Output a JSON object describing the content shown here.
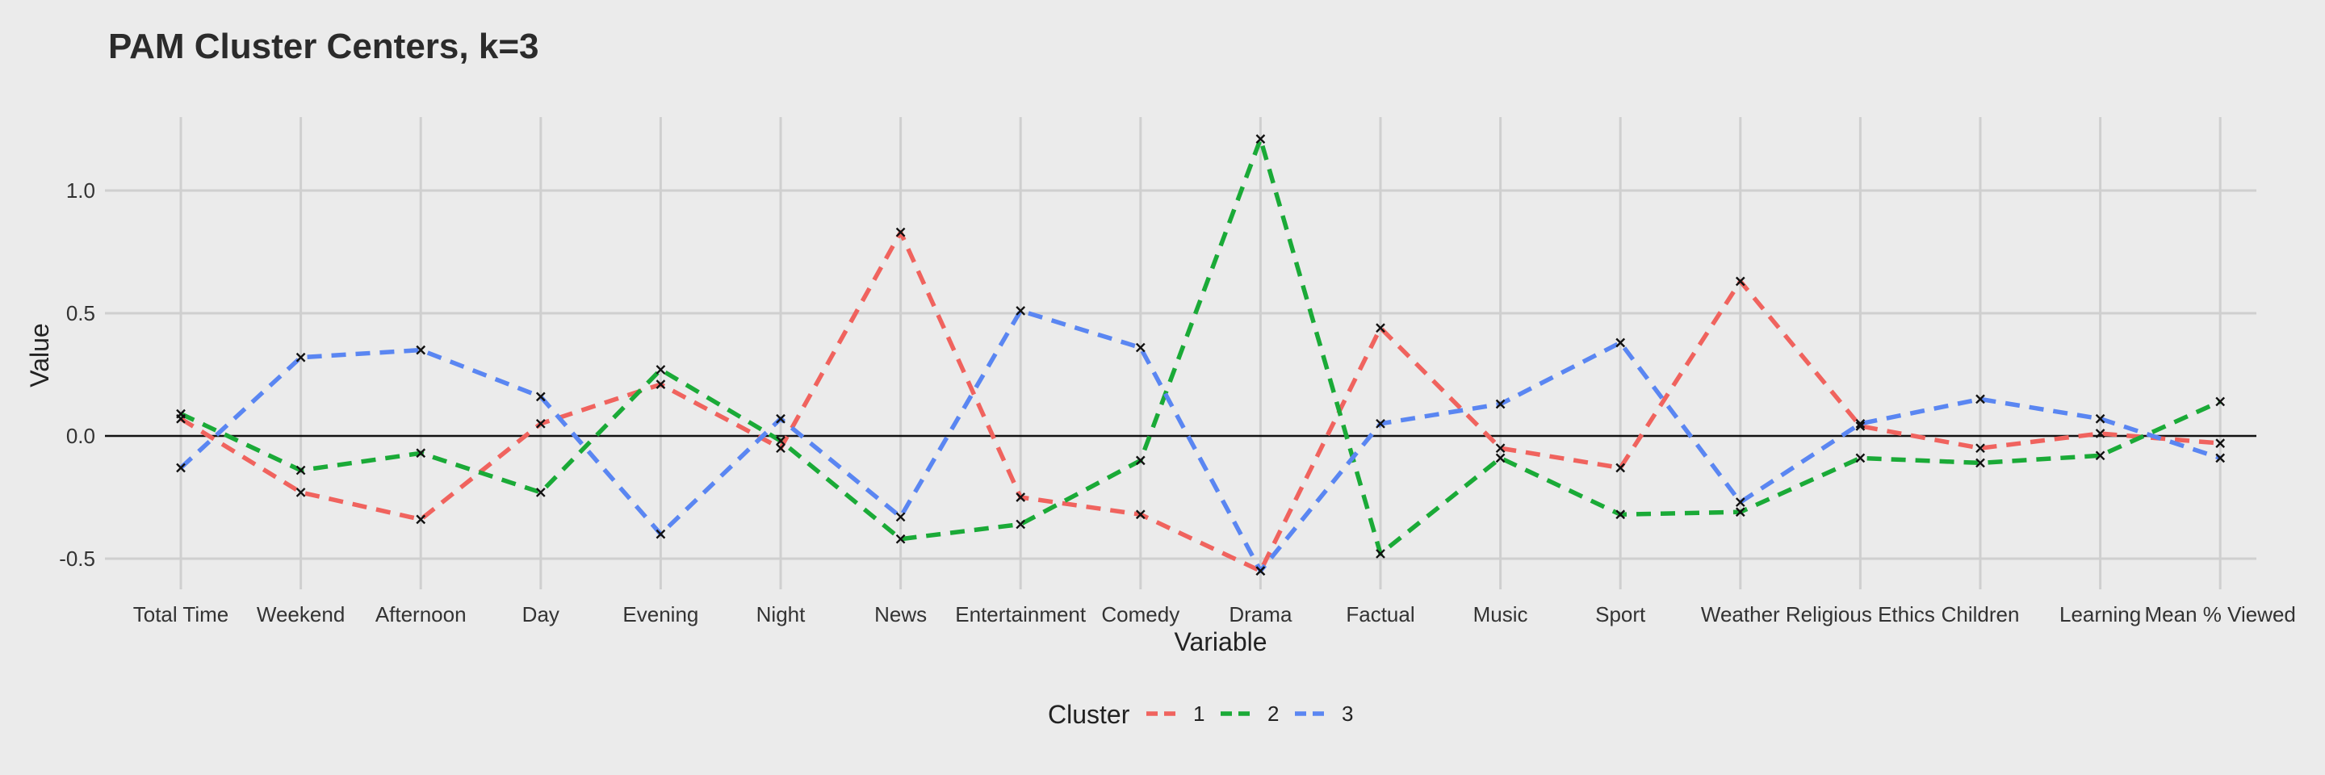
{
  "chart_data": {
    "type": "line",
    "title": "PAM Cluster Centers, k=3",
    "xlabel": "Variable",
    "ylabel": "Value",
    "ylim": [
      -0.65,
      1.25
    ],
    "yticks": [
      -0.5,
      0.0,
      0.5,
      1.0
    ],
    "ytick_labels": [
      "-0.5",
      "0.0",
      "0.5",
      "1.0"
    ],
    "grid": true,
    "zero_line": true,
    "legend": {
      "title": "Cluster",
      "position": "bottom"
    },
    "categories": [
      "Total Time",
      "Weekend",
      "Afternoon",
      "Day",
      "Evening",
      "Night",
      "News",
      "Entertainment",
      "Comedy",
      "Drama",
      "Factual",
      "Music",
      "Sport",
      "Weather",
      "Religious Ethics",
      "Children",
      "Learning",
      "Mean % Viewed"
    ],
    "series": [
      {
        "name": "1",
        "color": "#f0635e",
        "values": [
          0.07,
          -0.23,
          -0.34,
          0.05,
          0.21,
          -0.05,
          0.83,
          -0.25,
          -0.32,
          -0.55,
          0.44,
          -0.05,
          -0.13,
          0.63,
          0.04,
          -0.05,
          0.01,
          -0.03
        ]
      },
      {
        "name": "2",
        "color": "#1aaa37",
        "values": [
          0.09,
          -0.14,
          -0.07,
          -0.23,
          0.27,
          -0.02,
          -0.42,
          -0.36,
          -0.1,
          1.21,
          -0.48,
          -0.09,
          -0.32,
          -0.31,
          -0.09,
          -0.11,
          -0.08,
          0.14
        ]
      },
      {
        "name": "3",
        "color": "#5a86f2",
        "values": [
          -0.13,
          0.32,
          0.35,
          0.16,
          -0.4,
          0.07,
          -0.33,
          0.51,
          0.36,
          -0.55,
          0.05,
          0.13,
          0.38,
          -0.27,
          0.05,
          0.15,
          0.07,
          -0.09
        ]
      }
    ]
  }
}
